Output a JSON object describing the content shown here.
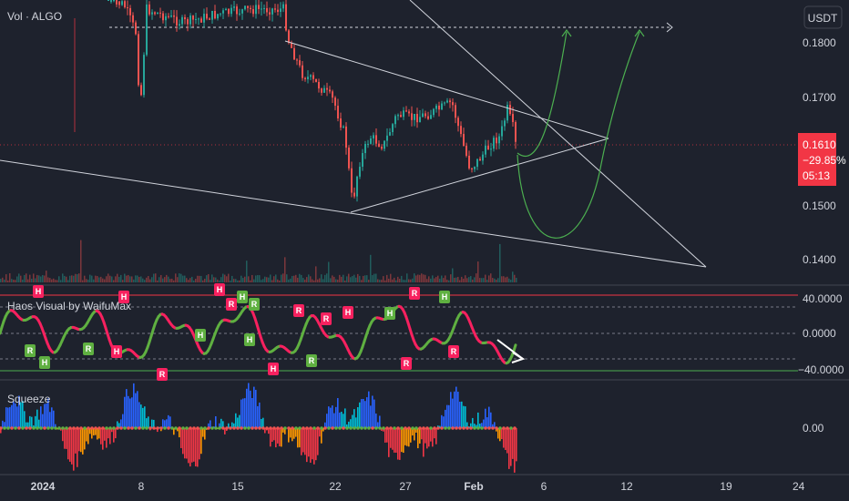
{
  "header": {
    "vol_label": "Vol · ALGO",
    "currency_button": "USDT"
  },
  "price_axis": {
    "ticks": [
      "0.1800",
      "0.1700",
      "0.1500",
      "0.1400"
    ],
    "current": {
      "price": "0.1610",
      "change": "−29.85%",
      "countdown": "05:13"
    }
  },
  "haos_panel": {
    "title": "Haos Visual by WaifuMax",
    "ticks": [
      "40.0000",
      "0.0000",
      "−40.0000"
    ],
    "markers": [
      {
        "t": "H",
        "c": "red"
      },
      {
        "t": "R",
        "c": "green"
      },
      {
        "t": "H",
        "c": "green"
      },
      {
        "t": "R",
        "c": "green"
      },
      {
        "t": "H",
        "c": "red"
      },
      {
        "t": "H",
        "c": "red"
      },
      {
        "t": "R",
        "c": "red"
      },
      {
        "t": "H",
        "c": "red"
      },
      {
        "t": "R",
        "c": "red"
      },
      {
        "t": "H",
        "c": "green"
      },
      {
        "t": "R",
        "c": "green"
      },
      {
        "t": "H",
        "c": "green"
      },
      {
        "t": "H",
        "c": "green"
      },
      {
        "t": "H",
        "c": "red"
      },
      {
        "t": "R",
        "c": "red"
      },
      {
        "t": "R",
        "c": "green"
      },
      {
        "t": "R",
        "c": "red"
      },
      {
        "t": "H",
        "c": "red"
      },
      {
        "t": "H",
        "c": "green"
      },
      {
        "t": "R",
        "c": "red"
      },
      {
        "t": "R",
        "c": "red"
      },
      {
        "t": "H",
        "c": "green"
      },
      {
        "t": "R",
        "c": "red"
      }
    ]
  },
  "squeeze_panel": {
    "title": "Squeeze",
    "ticks": [
      "0.00"
    ]
  },
  "time_axis": {
    "ticks": [
      "2024",
      "8",
      "15",
      "22",
      "27",
      "Feb",
      "6",
      "12",
      "19",
      "24"
    ]
  },
  "colors": {
    "background": "#1e222d",
    "grid": "#2a2e39",
    "text": "#d1d4dc",
    "up": "#26a69a",
    "down": "#ef5350",
    "price_tag": "#f23645",
    "osc_red": "#f7215f",
    "osc_green": "#5fb041",
    "trend_line": "#d1d4dc",
    "projection": "#4caf50"
  }
}
